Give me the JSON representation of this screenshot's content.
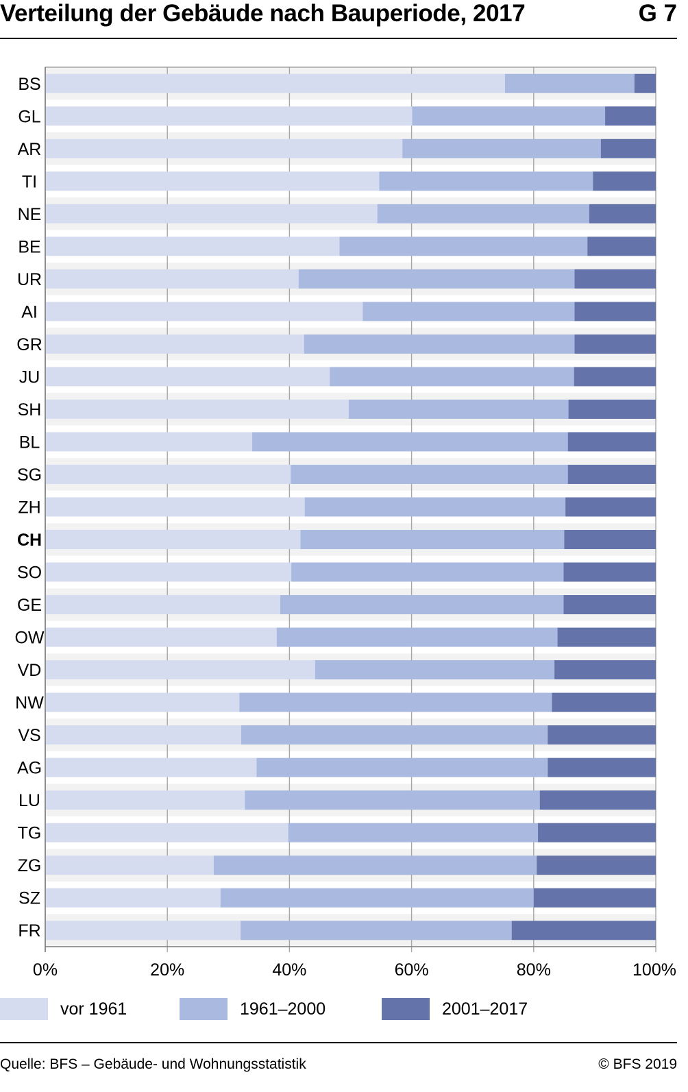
{
  "header": {
    "title": "Verteilung der Gebäude nach Bauperiode, 2017",
    "figure_no": "G 7"
  },
  "footer": {
    "source": "Quelle: BFS – Gebäude- und Wohnungsstatistik",
    "copyright": "© BFS 2019"
  },
  "colors": {
    "vor_1961": "#d6dcf0",
    "1961_2000": "#aab9e0",
    "2001_2017": "#6473aa",
    "band": "#f2f2f2",
    "grid": "#a6a6a6"
  },
  "chart_data": {
    "type": "bar",
    "orientation": "horizontal",
    "stacked": true,
    "title": "Verteilung der Gebäude nach Bauperiode, 2017",
    "xlabel": "",
    "ylabel": "",
    "xlim": [
      0,
      100
    ],
    "x_ticks": [
      "0%",
      "20%",
      "40%",
      "60%",
      "80%",
      "100%"
    ],
    "grid": true,
    "legend_position": "bottom",
    "highlight_category": "CH",
    "categories": [
      "BS",
      "GL",
      "AR",
      "TI",
      "NE",
      "BE",
      "UR",
      "AI",
      "GR",
      "JU",
      "SH",
      "BL",
      "SG",
      "ZH",
      "CH",
      "SO",
      "GE",
      "OW",
      "VD",
      "NW",
      "VS",
      "AG",
      "LU",
      "TG",
      "ZG",
      "SZ",
      "FR"
    ],
    "series": [
      {
        "name": "vor 1961",
        "key": "vor_1961",
        "values": [
          75.3,
          60.1,
          58.5,
          54.7,
          54.4,
          48.2,
          41.5,
          52.0,
          42.4,
          46.6,
          49.7,
          33.9,
          40.2,
          42.5,
          41.8,
          40.3,
          38.5,
          37.9,
          44.2,
          31.8,
          32.1,
          34.6,
          32.7,
          39.8,
          27.6,
          28.7,
          32.0
        ]
      },
      {
        "name": "1961–2000",
        "key": "1961_2000",
        "values": [
          21.2,
          31.6,
          32.5,
          35.0,
          34.7,
          40.6,
          45.2,
          34.7,
          44.3,
          40.0,
          36.0,
          51.7,
          45.4,
          42.7,
          43.2,
          44.6,
          46.4,
          46.0,
          39.2,
          51.2,
          50.2,
          47.7,
          48.3,
          40.9,
          52.9,
          51.3,
          44.4
        ]
      },
      {
        "name": "2001–2017",
        "key": "2001_2017",
        "values": [
          3.5,
          8.3,
          9.0,
          10.3,
          10.9,
          11.2,
          13.3,
          13.3,
          13.3,
          13.4,
          14.3,
          14.4,
          14.4,
          14.8,
          15.0,
          15.1,
          15.1,
          16.1,
          16.6,
          17.0,
          17.7,
          17.7,
          19.0,
          19.3,
          19.5,
          20.0,
          23.6
        ]
      }
    ]
  }
}
